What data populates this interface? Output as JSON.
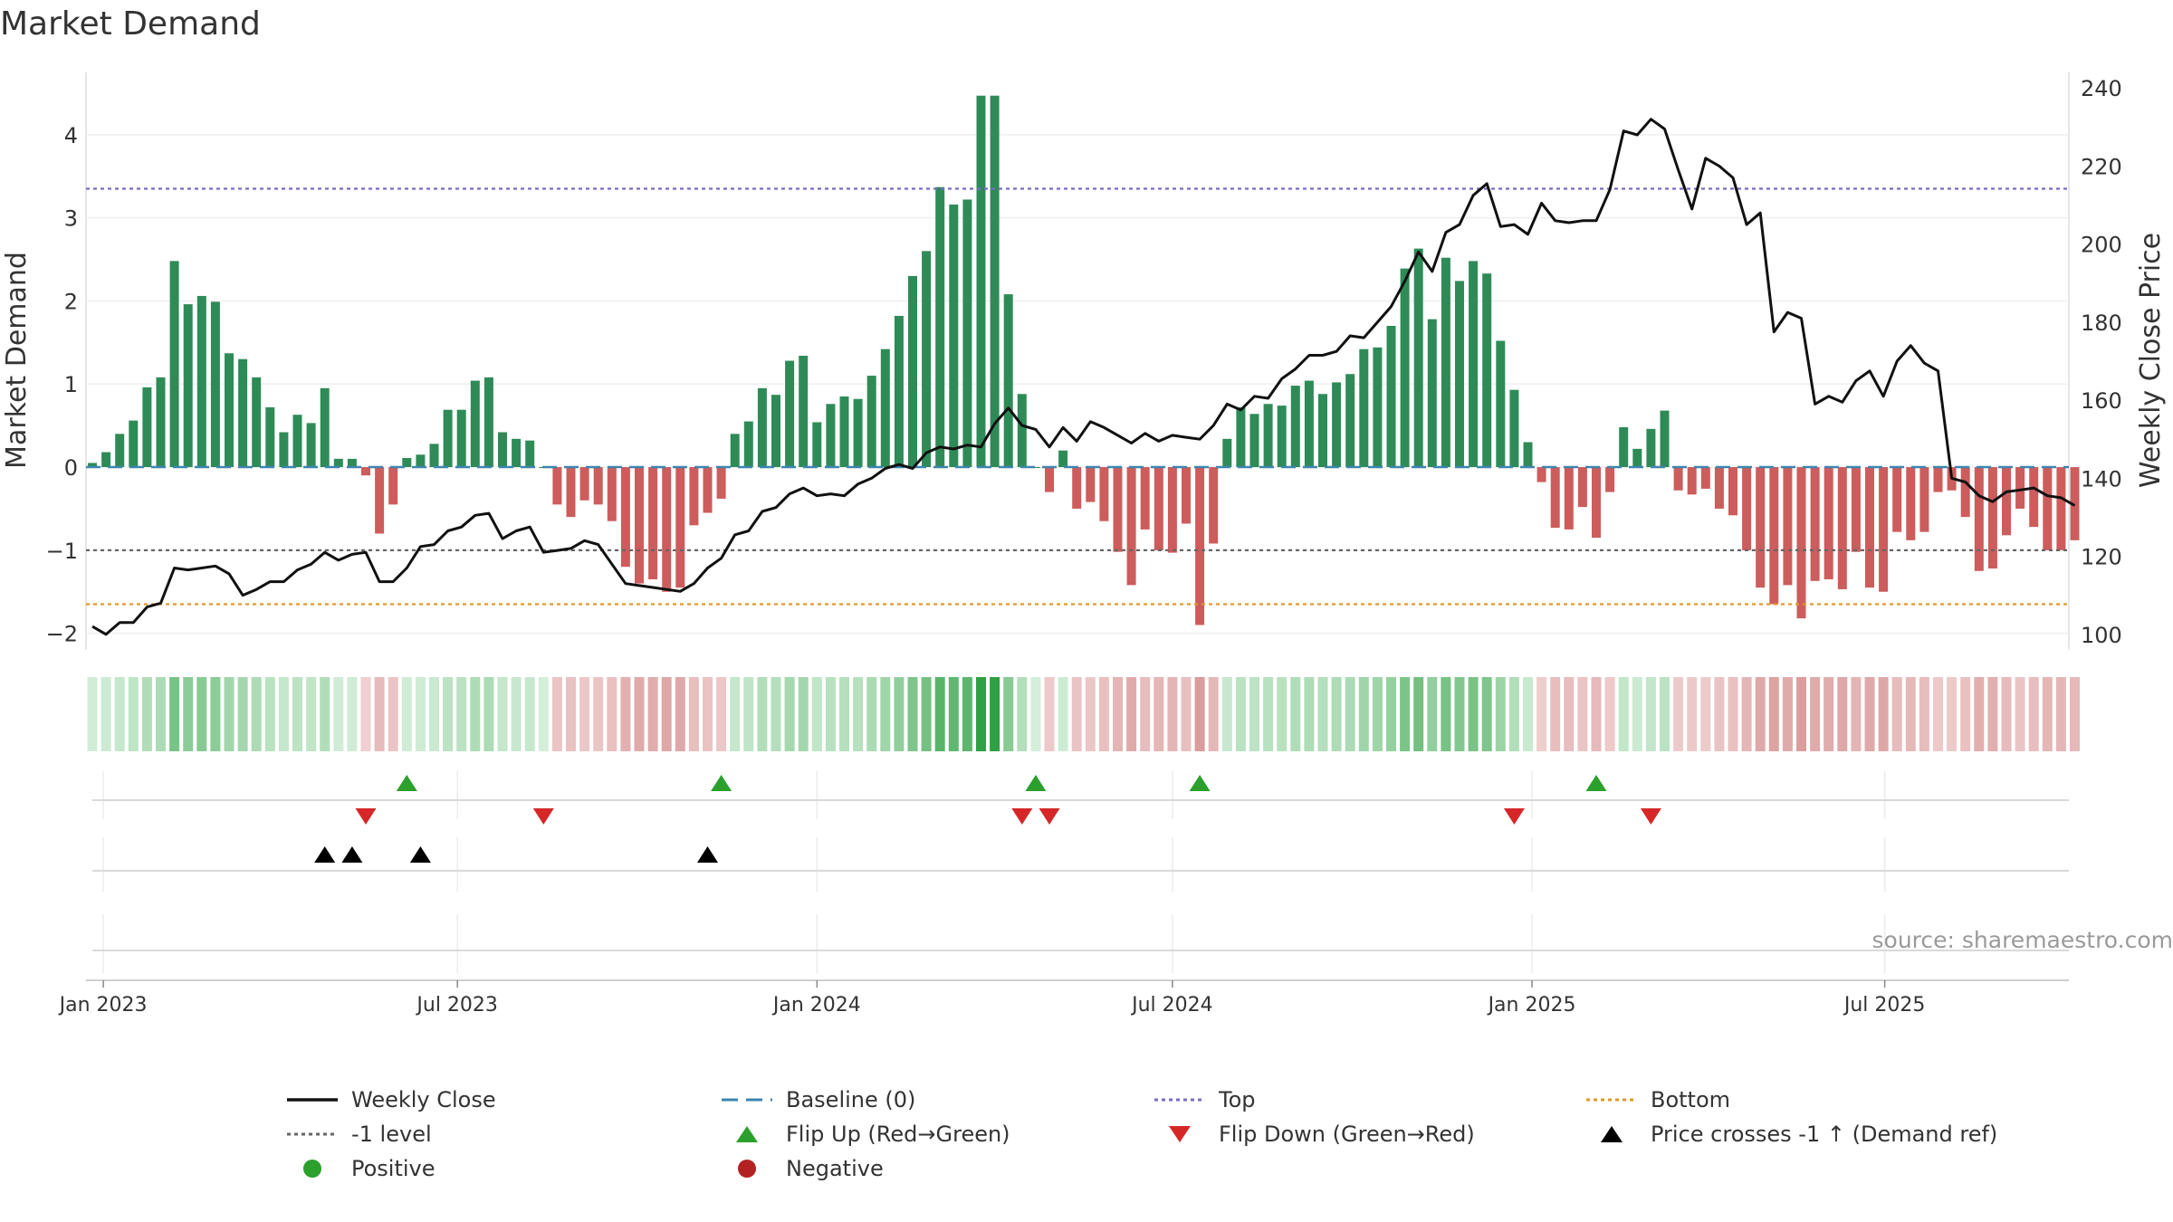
{
  "chart_data": {
    "type": "bar",
    "title": "Market Demand",
    "ylabel": "Market Demand",
    "y2label": "Weekly Close Price",
    "ylim": [
      -2.2,
      4.75
    ],
    "y2lim": [
      96,
      244
    ],
    "yticks": [
      -2,
      -1,
      0,
      1,
      2,
      3,
      4
    ],
    "y2ticks": [
      100,
      120,
      140,
      160,
      180,
      200,
      220,
      240
    ],
    "x_tick_labels": [
      "Jan 2023",
      "Jul 2023",
      "Jan 2024",
      "Jul 2024",
      "Jan 2025",
      "Jul 2025"
    ],
    "x_tick_weeks": [
      0.8,
      26.7,
      53,
      79,
      105.3,
      131.1
    ],
    "reference_lines": {
      "top": 3.35,
      "minus_one": -1,
      "bottom": -1.65,
      "baseline": 0
    },
    "demand": [
      0.05,
      0.18,
      0.4,
      0.56,
      0.96,
      1.08,
      2.48,
      1.96,
      2.06,
      1.99,
      1.37,
      1.3,
      1.08,
      0.72,
      0.42,
      0.63,
      0.53,
      0.95,
      0.1,
      0.1,
      -0.1,
      -0.8,
      -0.45,
      0.11,
      0.15,
      0.28,
      0.69,
      0.69,
      1.04,
      1.08,
      0.42,
      0.34,
      0.32,
      0,
      -0.45,
      -0.6,
      -0.4,
      -0.45,
      -0.65,
      -1.2,
      -1.4,
      -1.35,
      -1.5,
      -1.45,
      -0.7,
      -0.55,
      -0.38,
      0.4,
      0.55,
      0.95,
      0.87,
      1.28,
      1.34,
      0.54,
      0.76,
      0.85,
      0.82,
      1.1,
      1.42,
      1.82,
      2.3,
      2.6,
      3.37,
      3.16,
      3.22,
      4.47,
      4.47,
      2.08,
      0.88,
      0,
      -0.3,
      0.2,
      -0.5,
      -0.42,
      -0.65,
      -1.02,
      -1.42,
      -0.75,
      -1.0,
      -1.03,
      -0.68,
      -1.9,
      -0.92,
      0.34,
      0.72,
      0.64,
      0.76,
      0.74,
      0.98,
      1.04,
      0.88,
      1.02,
      1.12,
      1.42,
      1.44,
      1.7,
      2.39,
      2.63,
      1.78,
      2.52,
      2.24,
      2.48,
      2.33,
      1.52,
      0.93,
      0.3,
      -0.18,
      -0.73,
      -0.75,
      -0.48,
      -0.85,
      -0.3,
      0.48,
      0.22,
      0.46,
      0.68,
      -0.28,
      -0.33,
      -0.26,
      -0.5,
      -0.58,
      -1.0,
      -1.45,
      -1.65,
      -1.42,
      -1.82,
      -1.37,
      -1.35,
      -1.47,
      -1.02,
      -1.45,
      -1.5,
      -0.78,
      -0.88,
      -0.78,
      -0.3,
      -0.28,
      -0.6,
      -1.25,
      -1.22,
      -0.82,
      -0.5,
      -0.72,
      -1.0,
      -1.0,
      -0.88
    ],
    "weekly_close": [
      102,
      100,
      103,
      103,
      107,
      108,
      117,
      116.5,
      117,
      117.5,
      115.5,
      110,
      111.5,
      113.5,
      113.5,
      116.5,
      118,
      121,
      119,
      120.5,
      121,
      113.5,
      113.5,
      117,
      122.5,
      123,
      126.5,
      127.5,
      130.5,
      131,
      124.5,
      126.5,
      127.5,
      121,
      121.5,
      122,
      124,
      123,
      118,
      113,
      112.5,
      112,
      111.5,
      111,
      113,
      117,
      119.5,
      125.5,
      126.5,
      131.5,
      132.5,
      136,
      137.5,
      135.5,
      136,
      135.5,
      138.5,
      140,
      142.5,
      143.5,
      142.5,
      146.5,
      148,
      147.5,
      148.5,
      148,
      154,
      158,
      153.5,
      152.5,
      148,
      153,
      149.5,
      154.5,
      153,
      151,
      149,
      151.5,
      149.5,
      151,
      150.5,
      150,
      153.5,
      159,
      157.5,
      161,
      160.5,
      165.5,
      168,
      171.5,
      171.5,
      172.5,
      176.5,
      176,
      180,
      184,
      190.5,
      198,
      193,
      203,
      205,
      212.5,
      215.5,
      204.5,
      205,
      202.5,
      210.5,
      206,
      205.5,
      206,
      206,
      214,
      229,
      228,
      232,
      229.5,
      219,
      209,
      222,
      220,
      217,
      205,
      208,
      177.5,
      182.5,
      181,
      159,
      161,
      159.5,
      165,
      167.5,
      161,
      170,
      174,
      169.5,
      167.5,
      140,
      139,
      135.5,
      134,
      136.5,
      137,
      137.5,
      135.5,
      135,
      133
    ],
    "flip_up_weeks": [
      23,
      46,
      69,
      81,
      110
    ],
    "flip_down_weeks": [
      20,
      33,
      68,
      70,
      104,
      114
    ],
    "price_cross_weeks": [
      17,
      19,
      24,
      45
    ],
    "series": [
      {
        "name": "Weekly Close",
        "style": "solid",
        "color": "#111111"
      },
      {
        "name": "Baseline (0)",
        "style": "dash",
        "color": "#3d85b0"
      },
      {
        "name": "Top",
        "style": "dot",
        "color": "#7b6bc4"
      },
      {
        "name": "Bottom",
        "style": "dot",
        "color": "#e09a28"
      },
      {
        "name": "-1 level",
        "style": "dot",
        "color": "#666666"
      },
      {
        "name": "Flip Up (Red→Green)",
        "style": "triangle-up",
        "color": "#2ca02c"
      },
      {
        "name": "Flip Down (Green→Red)",
        "style": "triangle-down",
        "color": "#d62728"
      },
      {
        "name": "Price crosses -1 ↑ (Demand ref)",
        "style": "triangle-up",
        "color": "#000000"
      },
      {
        "name": "Positive",
        "style": "circle",
        "color": "#2ca02c"
      },
      {
        "name": "Negative",
        "style": "circle",
        "color": "#b22222"
      }
    ],
    "source": "source: sharemaestro.com"
  },
  "colors": {
    "positive_bar": "#2e8b57",
    "negative_bar": "#cd5c5c"
  }
}
